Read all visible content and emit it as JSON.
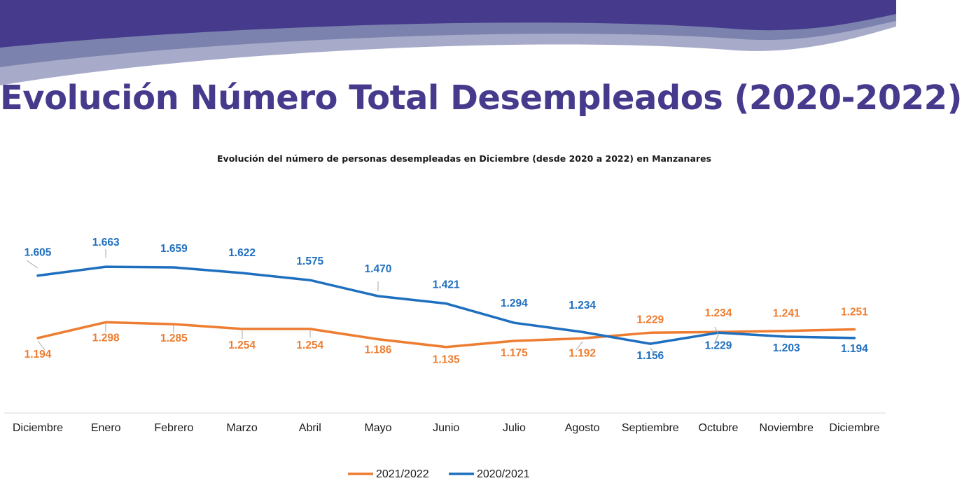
{
  "slide": {
    "title": "Evolución Número Total Desempleados (2020-2022)"
  },
  "colors": {
    "banner_dark": "#453a8c",
    "banner_mid": "#7b82ae",
    "banner_light": "#a7abc9",
    "title": "#453a8c",
    "series_2021_2022": "#ed7d31",
    "series_2020_2021": "#1f6fbf"
  },
  "chart_data": {
    "type": "line",
    "title": "Evolución del número de personas desempleadas en Diciembre (desde 2020 a 2022) en Manzanares",
    "xlabel": "",
    "ylabel": "",
    "categories": [
      "Diciembre",
      "Enero",
      "Febrero",
      "Marzo",
      "Abril",
      "Mayo",
      "Junio",
      "Julio",
      "Agosto",
      "Septiembre",
      "Octubre",
      "Noviembre",
      "Diciembre"
    ],
    "series": [
      {
        "name": "2021/2022",
        "color": "#ed7d31",
        "values": [
          1194,
          1298,
          1285,
          1254,
          1254,
          1186,
          1135,
          1175,
          1192,
          1229,
          1234,
          1241,
          1251
        ],
        "labels": [
          "1.194",
          "1.298",
          "1.285",
          "1.254",
          "1.254",
          "1.186",
          "1.135",
          "1.175",
          "1.192",
          "1.229",
          "1.234",
          "1.241",
          "1.251"
        ]
      },
      {
        "name": "2020/2021",
        "color": "#1f6fbf",
        "values": [
          1605,
          1663,
          1659,
          1622,
          1575,
          1470,
          1421,
          1294,
          1234,
          1156,
          1229,
          1203,
          1194
        ],
        "labels": [
          "1.605",
          "1.663",
          "1.659",
          "1.622",
          "1.575",
          "1.470",
          "1.421",
          "1.294",
          "1.234",
          "1.156",
          "1.229",
          "1.203",
          "1.194"
        ]
      }
    ],
    "ylim": [
      700,
      1900
    ],
    "grid": false,
    "legend": "bottom"
  }
}
